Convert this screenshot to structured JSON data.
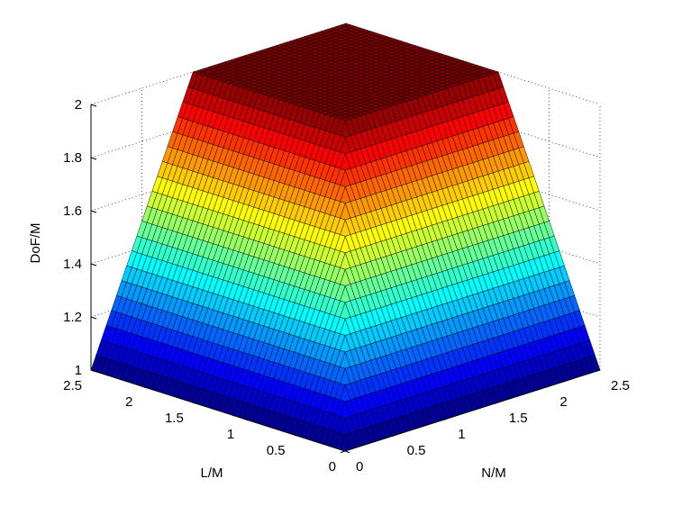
{
  "chart_data": {
    "type": "surface",
    "colormap": "jet",
    "xlabel": "L/M",
    "ylabel": "N/M",
    "zlabel": "DoF/M",
    "xlim": [
      0,
      2.5
    ],
    "ylim": [
      0,
      2.5
    ],
    "zlim": [
      1,
      2
    ],
    "grid": true,
    "x_ticks": [
      "0",
      "0.5",
      "1",
      "1.5",
      "2",
      "2.5"
    ],
    "y_ticks": [
      "0",
      "0.5",
      "1",
      "1.5",
      "2",
      "2.5"
    ],
    "z_ticks": [
      "1",
      "1.2",
      "1.4",
      "1.6",
      "1.8",
      "2"
    ],
    "function": "DoF/M = min(2, 1 + min(L/M, N/M))",
    "sample_points": [
      {
        "L": 0,
        "N": 0,
        "DoF": 1
      },
      {
        "L": 0.5,
        "N": 0.5,
        "DoF": 1.5
      },
      {
        "L": 1,
        "N": 1,
        "DoF": 2
      },
      {
        "L": 2.5,
        "N": 2.5,
        "DoF": 2
      },
      {
        "L": 2.5,
        "N": 0,
        "DoF": 1
      },
      {
        "L": 0,
        "N": 2.5,
        "DoF": 1
      },
      {
        "L": 2.5,
        "N": 0.5,
        "DoF": 1.5
      },
      {
        "L": 0.5,
        "N": 2.5,
        "DoF": 1.5
      }
    ]
  }
}
